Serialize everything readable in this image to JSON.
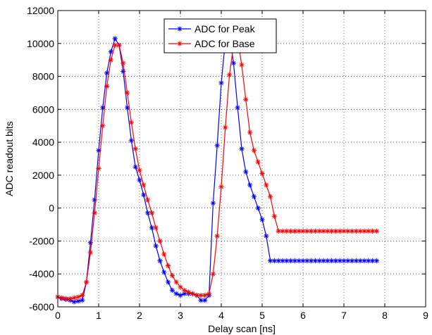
{
  "chart_data": {
    "type": "line",
    "title": "",
    "xlabel": "Delay scan [ns]",
    "ylabel": "ADC readout bits",
    "xlim": [
      0,
      9
    ],
    "ylim": [
      -6000,
      12000
    ],
    "x_ticks": [
      0,
      1,
      2,
      3,
      4,
      5,
      6,
      7,
      8,
      9
    ],
    "y_ticks": [
      -6000,
      -4000,
      -2000,
      0,
      2000,
      4000,
      6000,
      8000,
      10000,
      12000
    ],
    "grid": "dotted",
    "legend_position": "top-center",
    "series": [
      {
        "name": "ADC for Peak",
        "color": "#0000ff",
        "marker": "asterisk",
        "x": [
          0.0,
          0.1,
          0.2,
          0.3,
          0.4,
          0.5,
          0.6,
          0.7,
          0.8,
          0.9,
          1.0,
          1.1,
          1.2,
          1.3,
          1.4,
          1.5,
          1.6,
          1.7,
          1.8,
          1.9,
          2.0,
          2.1,
          2.2,
          2.3,
          2.4,
          2.5,
          2.6,
          2.7,
          2.8,
          2.9,
          3.0,
          3.1,
          3.2,
          3.3,
          3.4,
          3.5,
          3.6,
          3.7,
          3.8,
          3.9,
          4.0,
          4.1,
          4.2,
          4.3,
          4.4,
          4.5,
          4.6,
          4.7,
          4.8,
          4.9,
          5.0,
          5.1,
          5.2,
          5.3,
          5.4,
          5.5,
          5.6,
          5.7,
          5.8,
          5.9,
          6.0,
          6.1,
          6.2,
          6.3,
          6.4,
          6.5,
          6.6,
          6.7,
          6.8,
          6.9,
          7.0,
          7.1,
          7.2,
          7.3,
          7.4,
          7.5,
          7.6,
          7.7,
          7.8
        ],
        "y": [
          -5400,
          -5500,
          -5550,
          -5600,
          -5700,
          -5650,
          -5600,
          -4500,
          -2100,
          500,
          3500,
          6100,
          8200,
          9500,
          10300,
          9900,
          8300,
          6100,
          4100,
          2500,
          1700,
          800,
          -300,
          -1200,
          -2300,
          -3200,
          -3900,
          -4500,
          -5000,
          -5200,
          -5300,
          -5200,
          -5200,
          -5200,
          -5300,
          -5600,
          -5600,
          -5300,
          300,
          3800,
          7600,
          10200,
          10500,
          8800,
          6100,
          3600,
          2200,
          1400,
          700,
          0,
          -700,
          -1700,
          -3200,
          -3200,
          -3200,
          -3200,
          -3200,
          -3200,
          -3200,
          -3200,
          -3200,
          -3200,
          -3200,
          -3200,
          -3200,
          -3200,
          -3200,
          -3200,
          -3200,
          -3200,
          -3200,
          -3200,
          -3200,
          -3200,
          -3200,
          -3200,
          -3200,
          -3200,
          -3200
        ]
      },
      {
        "name": "ADC for Base",
        "color": "#ff0000",
        "marker": "asterisk",
        "x": [
          0.0,
          0.1,
          0.2,
          0.3,
          0.4,
          0.5,
          0.6,
          0.7,
          0.8,
          0.9,
          1.0,
          1.1,
          1.2,
          1.3,
          1.4,
          1.5,
          1.6,
          1.7,
          1.8,
          1.9,
          2.0,
          2.1,
          2.2,
          2.3,
          2.4,
          2.5,
          2.6,
          2.7,
          2.8,
          2.9,
          3.0,
          3.1,
          3.2,
          3.3,
          3.4,
          3.5,
          3.6,
          3.7,
          3.8,
          3.9,
          4.0,
          4.1,
          4.2,
          4.3,
          4.4,
          4.5,
          4.6,
          4.7,
          4.8,
          4.9,
          5.0,
          5.1,
          5.2,
          5.3,
          5.4,
          5.5,
          5.6,
          5.7,
          5.8,
          5.9,
          6.0,
          6.1,
          6.2,
          6.3,
          6.4,
          6.5,
          6.6,
          6.7,
          6.8,
          6.9,
          7.0,
          7.1,
          7.2,
          7.3,
          7.4,
          7.5,
          7.6,
          7.7,
          7.8
        ],
        "y": [
          -5400,
          -5450,
          -5500,
          -5500,
          -5450,
          -5400,
          -5300,
          -4500,
          -2700,
          -300,
          2400,
          5000,
          7400,
          9000,
          9900,
          9900,
          8800,
          7000,
          5200,
          3600,
          2300,
          1400,
          500,
          -300,
          -1200,
          -2000,
          -2800,
          -3500,
          -4100,
          -4500,
          -4800,
          -5000,
          -5100,
          -5200,
          -5300,
          -5300,
          -5300,
          -5200,
          -4000,
          -1700,
          1300,
          4900,
          8100,
          9900,
          10300,
          8700,
          6600,
          4600,
          3500,
          2800,
          2100,
          1400,
          700,
          -500,
          -1400,
          -1400,
          -1400,
          -1400,
          -1400,
          -1400,
          -1400,
          -1400,
          -1400,
          -1400,
          -1400,
          -1400,
          -1400,
          -1400,
          -1400,
          -1400,
          -1400,
          -1400,
          -1400,
          -1400,
          -1400,
          -1400,
          -1400,
          -1400,
          -1400
        ]
      }
    ]
  }
}
